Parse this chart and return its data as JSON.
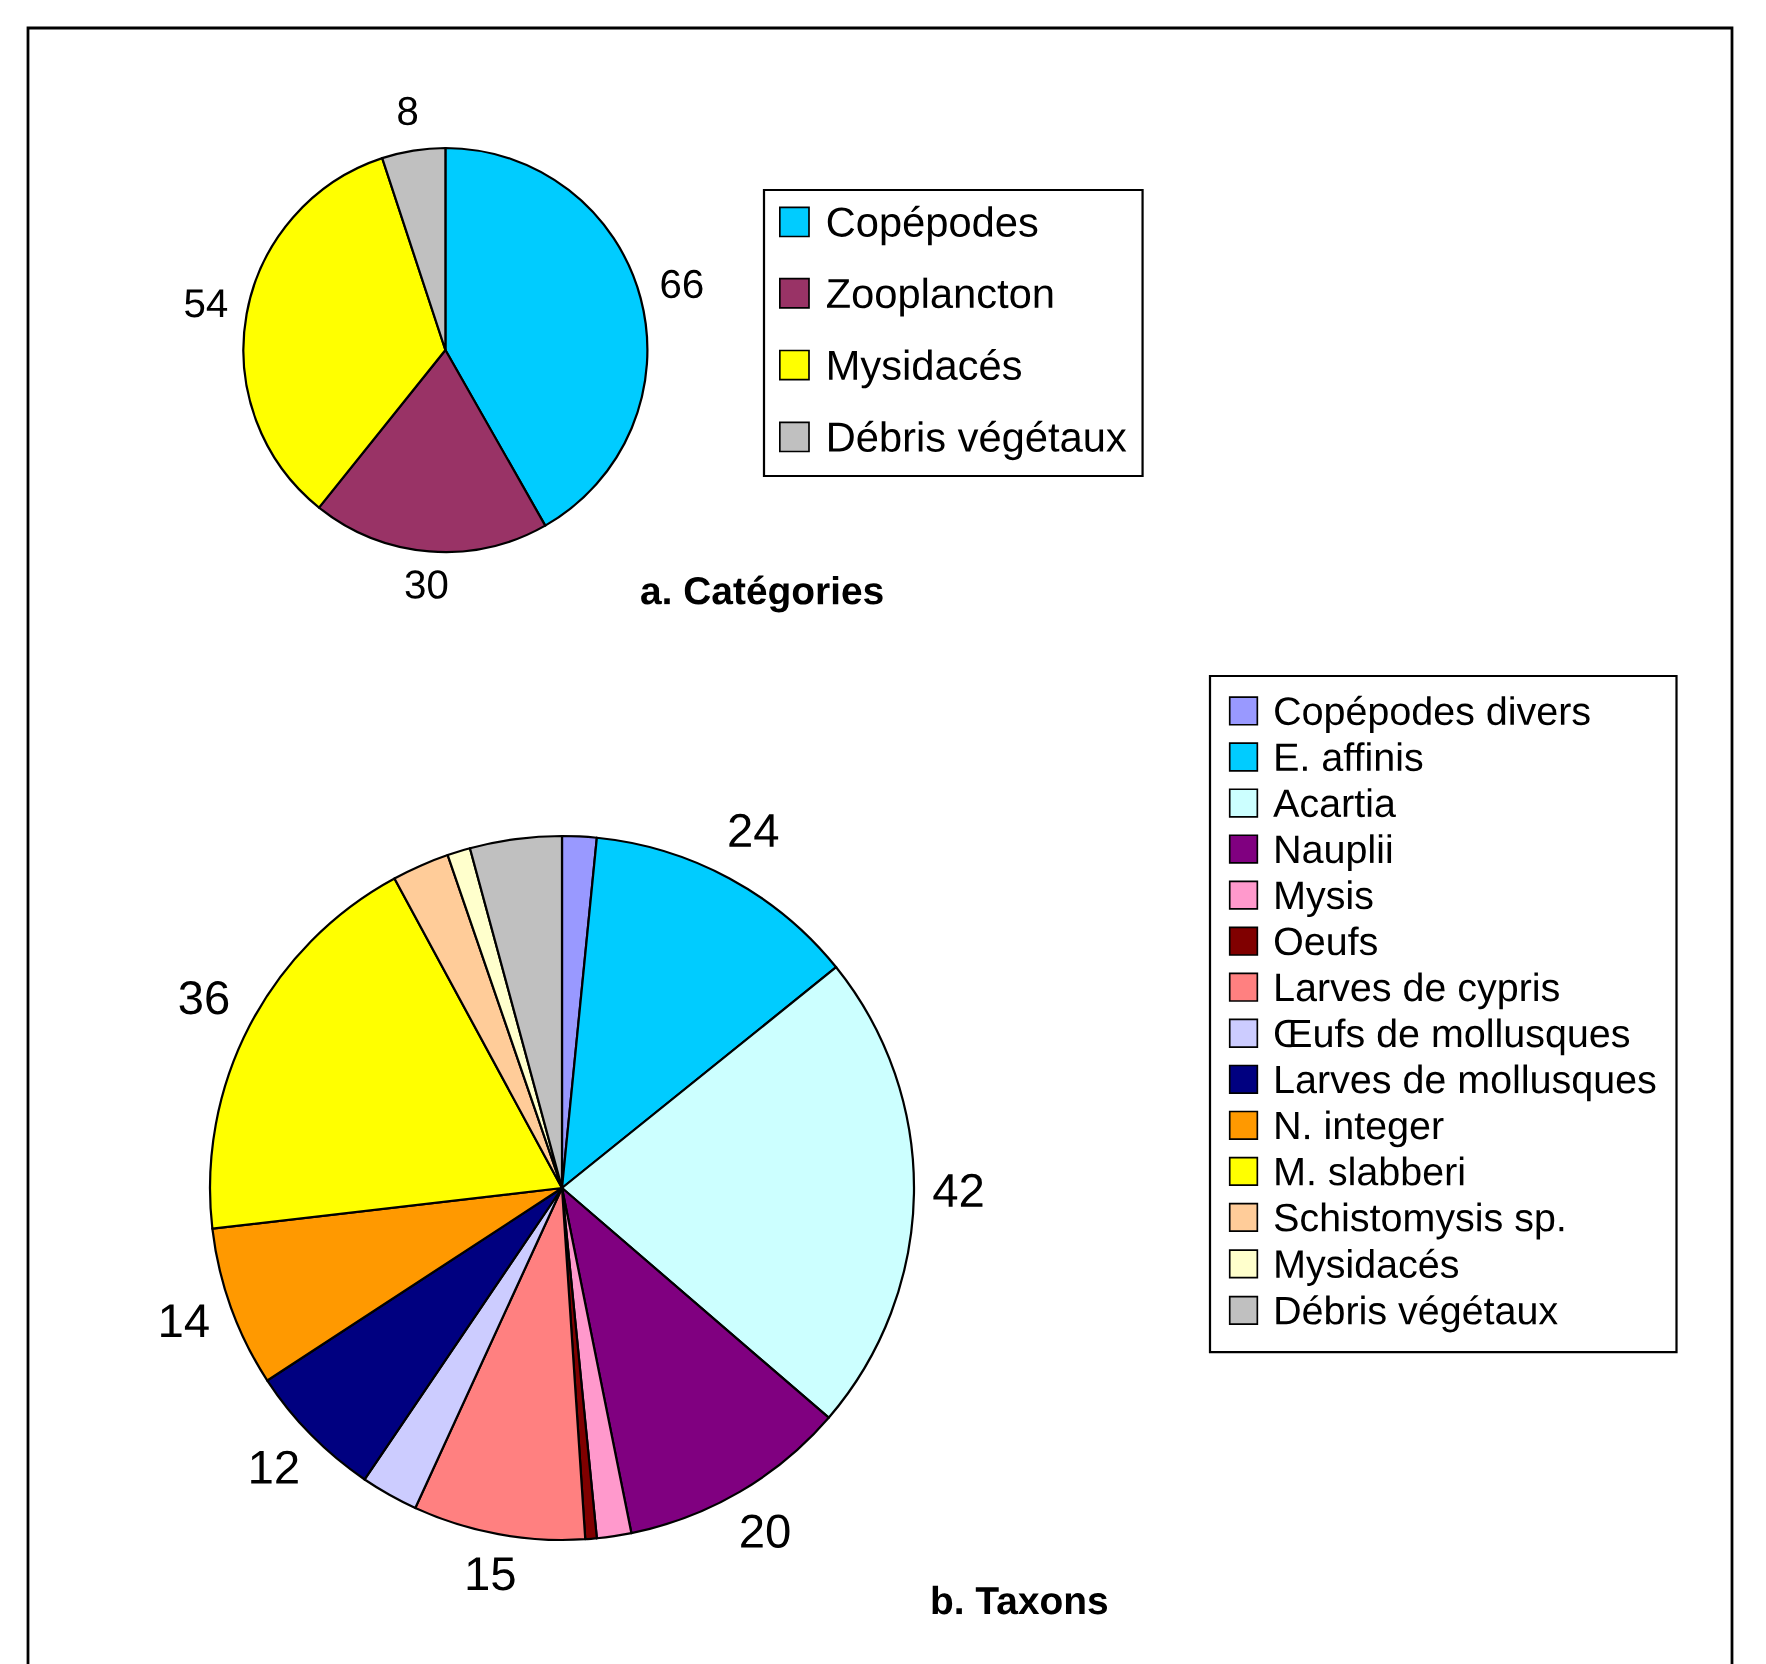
{
  "chart_data": [
    {
      "type": "pie",
      "title": "a. Catégories",
      "categories": [
        "Copépodes",
        "Zooplancton",
        "Mysidacés",
        "Débris végétaux"
      ],
      "values": [
        66,
        30,
        54,
        8
      ],
      "colors": [
        "#00ccff",
        "#993366",
        "#ffff00",
        "#c0c0c0"
      ],
      "data_labels": true,
      "legend": "right"
    },
    {
      "type": "pie",
      "title": "b. Taxons",
      "categories": [
        "Copépodes divers",
        "E. affinis",
        "Acartia",
        "Nauplii",
        "Mysis",
        "Oeufs",
        "Larves de cypris",
        "Œufs de mollusques",
        "Larves de mollusques",
        "N. integer",
        "M. slabberi",
        "Schistomysis sp.",
        "Mysidacés",
        "Débris végétaux"
      ],
      "values": [
        3,
        24,
        42,
        20,
        3,
        1,
        15,
        5,
        12,
        14,
        36,
        5,
        2,
        8
      ],
      "colors": [
        "#9999ff",
        "#00ccff",
        "#ccffff",
        "#800080",
        "#ff99cc",
        "#800000",
        "#ff8080",
        "#ccccff",
        "#000080",
        "#ff9900",
        "#ffff00",
        "#ffcc99",
        "#ffffcc",
        "#c0c0c0"
      ],
      "value_labels": [
        null,
        "24",
        "42",
        "20",
        null,
        null,
        "15",
        null,
        "12",
        "14",
        "36",
        null,
        null,
        null
      ],
      "legend": "right"
    }
  ]
}
